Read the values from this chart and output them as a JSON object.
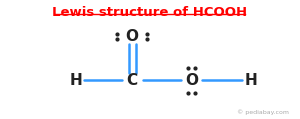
{
  "title": "Lewis structure of HCOOH",
  "title_color": "#ff0000",
  "title_fontsize": 9.5,
  "bond_color": "#3399ff",
  "atom_color": "#222222",
  "dot_color": "#222222",
  "watermark": "© pediabay.com",
  "bg_color": "#ffffff",
  "figsize": [
    3.0,
    1.19
  ],
  "dpi": 100,
  "xlim": [
    -0.5,
    1.5
  ],
  "ylim": [
    -0.35,
    0.75
  ],
  "C": [
    0.38,
    0.0
  ],
  "Od": [
    0.38,
    0.42
  ],
  "Os": [
    0.78,
    0.0
  ],
  "Hl": [
    0.0,
    0.0
  ],
  "Hr": [
    1.18,
    0.0
  ]
}
